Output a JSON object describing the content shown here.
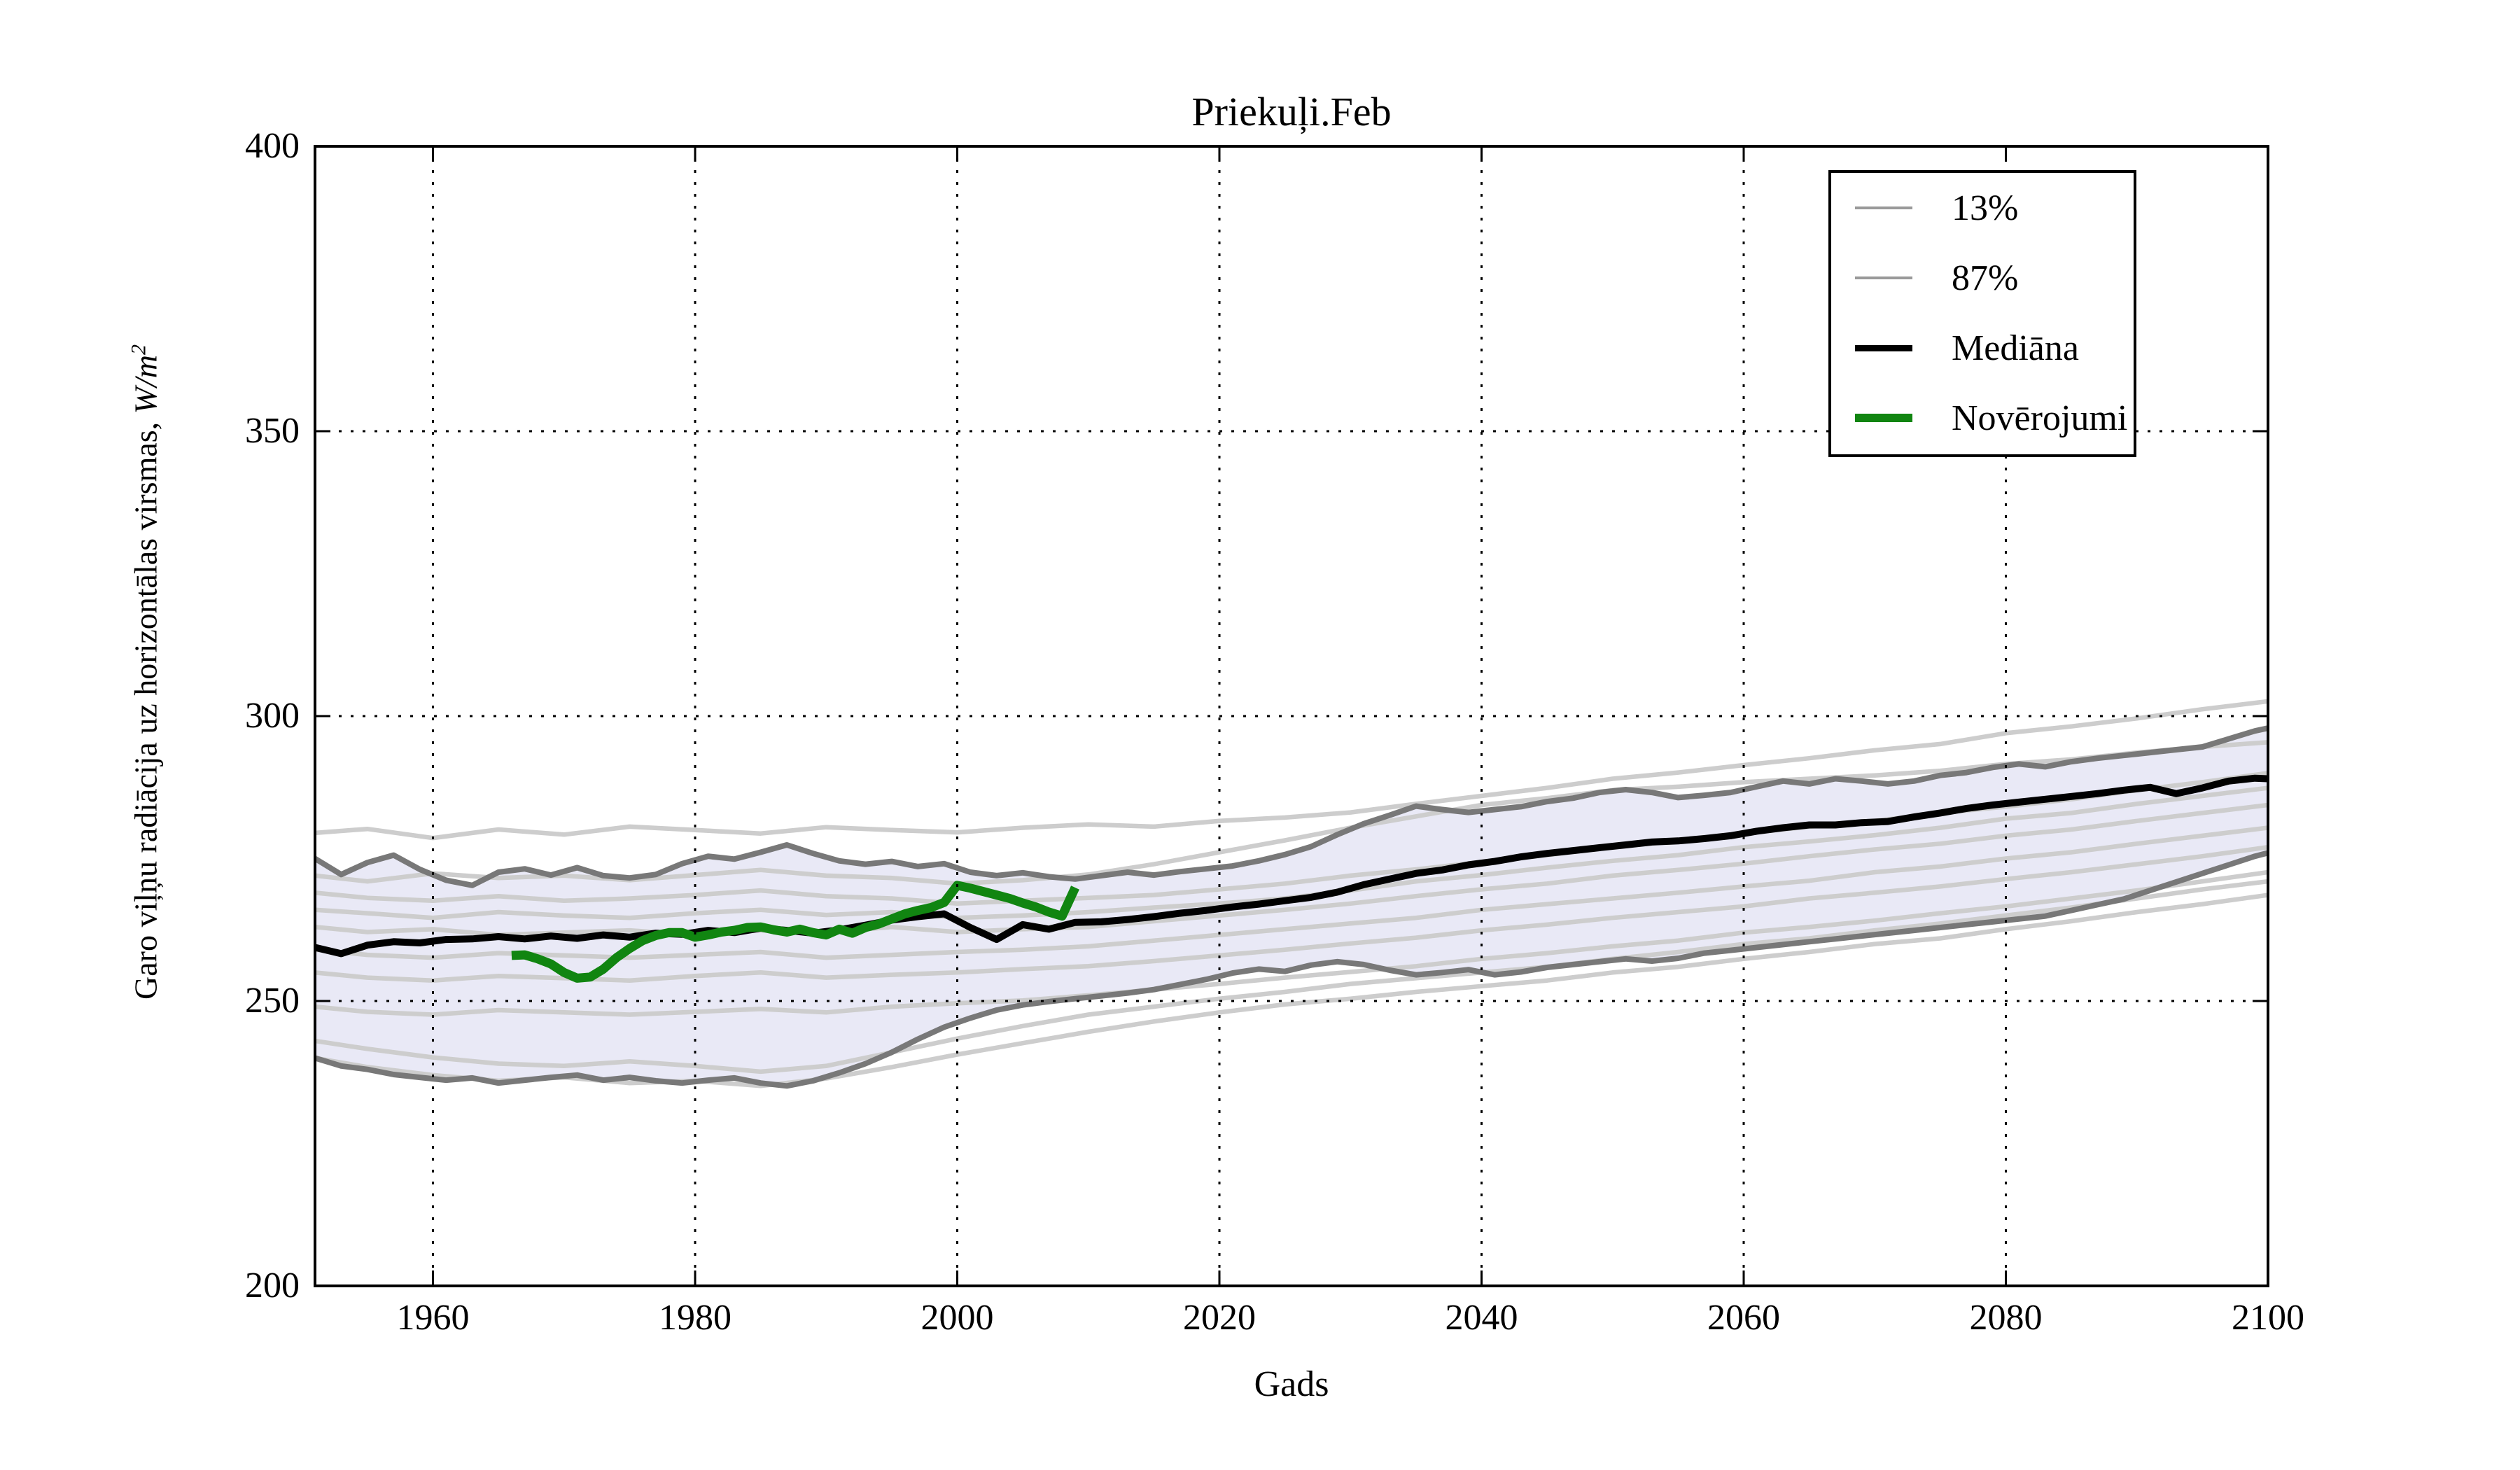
{
  "title": "Priekuļi.Feb",
  "xlabel": "Gads",
  "ylabel": {
    "text": "Garo viļņu radiācija uz horizontālas virsmas, ",
    "math": "W/m",
    "exp": "2"
  },
  "colors": {
    "background": "#ffffff",
    "frame": "#000000",
    "grid": "#000000",
    "band_fill": "#e9e9f6",
    "band_edge": "#787878",
    "ensemble": "#cdcdcd",
    "median": "#000000",
    "observations": "#118511",
    "legend_gray": "#999999"
  },
  "legend": {
    "items": [
      {
        "label": "13%",
        "color": "#999999",
        "lw": 4
      },
      {
        "label": "87%",
        "color": "#999999",
        "lw": 4
      },
      {
        "label": "Mediāna",
        "color": "#000000",
        "lw": 9
      },
      {
        "label": "Novērojumi",
        "color": "#118511",
        "lw": 12
      }
    ]
  },
  "chart_data": {
    "type": "line",
    "title": "Priekuļi.Feb",
    "xlabel": "Gads",
    "ylabel": "Garo viļņu radiācija uz horizontālas virsmas, W/m²",
    "xlim": [
      1951,
      2100
    ],
    "ylim": [
      200,
      400
    ],
    "xticks": [
      1960,
      1980,
      2000,
      2020,
      2040,
      2060,
      2080,
      2100
    ],
    "yticks": [
      200,
      250,
      300,
      350,
      400
    ],
    "grid": true,
    "grid_style": "dotted",
    "legend_position": "upper right",
    "band": {
      "lower": "p13",
      "upper": "p87",
      "fill": "#e9e9f6"
    },
    "years_main": [
      1951,
      1953,
      1955,
      1957,
      1959,
      1961,
      1963,
      1965,
      1967,
      1969,
      1971,
      1973,
      1975,
      1977,
      1979,
      1981,
      1983,
      1985,
      1987,
      1989,
      1991,
      1993,
      1995,
      1997,
      1999,
      2001,
      2003,
      2005,
      2007,
      2009,
      2011,
      2013,
      2015,
      2017,
      2019,
      2021,
      2023,
      2025,
      2027,
      2029,
      2031,
      2033,
      2035,
      2037,
      2039,
      2041,
      2043,
      2045,
      2047,
      2049,
      2051,
      2053,
      2055,
      2057,
      2059,
      2061,
      2063,
      2065,
      2067,
      2069,
      2071,
      2073,
      2075,
      2077,
      2079,
      2081,
      2083,
      2085,
      2087,
      2089,
      2091,
      2093,
      2095,
      2097,
      2099,
      2100
    ],
    "series": {
      "median": {
        "label": "Mediāna",
        "values": [
          259.4,
          258.3,
          259.8,
          260.4,
          260.2,
          260.8,
          260.9,
          261.3,
          260.9,
          261.4,
          261.0,
          261.6,
          261.2,
          261.9,
          261.7,
          262.4,
          262.0,
          262.8,
          262.4,
          261.9,
          262.5,
          263.3,
          264.2,
          264.8,
          265.3,
          262.9,
          260.8,
          263.4,
          262.6,
          263.8,
          263.9,
          264.3,
          264.8,
          265.4,
          265.9,
          266.5,
          267.0,
          267.6,
          268.2,
          269.1,
          270.4,
          271.4,
          272.4,
          273.0,
          273.9,
          274.5,
          275.3,
          275.9,
          276.4,
          276.9,
          277.4,
          277.9,
          278.1,
          278.5,
          279.0,
          279.8,
          280.4,
          280.9,
          280.9,
          281.3,
          281.5,
          282.3,
          283.0,
          283.8,
          284.4,
          284.9,
          285.4,
          285.9,
          286.4,
          287.0,
          287.5,
          286.4,
          287.4,
          288.6,
          289.1,
          289.0
        ]
      },
      "p87": {
        "label": "87%",
        "values": [
          275.0,
          272.2,
          274.3,
          275.6,
          273.1,
          271.2,
          270.3,
          272.6,
          273.2,
          272.1,
          273.4,
          272.0,
          271.6,
          272.2,
          274.1,
          275.4,
          274.9,
          276.1,
          277.4,
          275.9,
          274.6,
          274.0,
          274.5,
          273.6,
          274.1,
          272.6,
          272.0,
          272.5,
          271.8,
          271.4,
          272.0,
          272.6,
          272.1,
          272.7,
          273.2,
          273.7,
          274.6,
          275.7,
          277.1,
          279.2,
          281.1,
          282.6,
          284.2,
          283.6,
          283.1,
          283.6,
          284.1,
          285.0,
          285.6,
          286.6,
          287.1,
          286.6,
          285.7,
          286.1,
          286.6,
          287.6,
          288.6,
          288.1,
          289.0,
          288.6,
          288.1,
          288.6,
          289.6,
          290.1,
          291.0,
          291.6,
          291.1,
          292.0,
          292.6,
          293.1,
          293.6,
          294.1,
          294.6,
          296.0,
          297.4,
          297.9
        ]
      },
      "p13": {
        "label": "13%",
        "values": [
          240.0,
          238.6,
          238.0,
          237.1,
          236.6,
          236.1,
          236.5,
          235.6,
          236.1,
          236.6,
          237.0,
          236.1,
          236.6,
          236.0,
          235.6,
          236.1,
          236.5,
          235.6,
          235.1,
          236.0,
          237.4,
          239.0,
          241.0,
          243.3,
          245.4,
          247.0,
          248.4,
          249.3,
          249.9,
          250.4,
          250.9,
          251.4,
          252.0,
          252.9,
          253.8,
          254.9,
          255.6,
          255.2,
          256.3,
          256.9,
          256.4,
          255.4,
          254.6,
          255.0,
          255.5,
          254.6,
          255.1,
          255.9,
          256.4,
          256.9,
          257.4,
          257.0,
          257.5,
          258.4,
          258.9,
          259.4,
          259.9,
          260.4,
          260.9,
          261.4,
          261.9,
          262.4,
          262.9,
          263.4,
          263.9,
          264.4,
          264.9,
          265.9,
          266.9,
          267.9,
          269.4,
          270.9,
          272.4,
          273.9,
          275.4,
          276.0
        ]
      },
      "observations": {
        "label": "Novērojumi",
        "years": [
          1966,
          1967,
          1968,
          1969,
          1970,
          1971,
          1972,
          1973,
          1974,
          1975,
          1976,
          1977,
          1978,
          1979,
          1980,
          1981,
          1982,
          1983,
          1984,
          1985,
          1986,
          1987,
          1988,
          1989,
          1990,
          1991,
          1992,
          1993,
          1994,
          1995,
          1996,
          1997,
          1998,
          1999,
          2000,
          2001,
          2002,
          2003,
          2004,
          2005,
          2006,
          2007,
          2008,
          2009
        ],
        "values": [
          258.0,
          258.1,
          257.4,
          256.5,
          255.0,
          254.0,
          254.2,
          255.6,
          257.6,
          259.2,
          260.6,
          261.5,
          262.0,
          262.0,
          261.2,
          261.6,
          262.1,
          262.4,
          262.9,
          263.0,
          262.5,
          262.1,
          262.6,
          262.0,
          261.6,
          262.6,
          261.9,
          262.9,
          263.5,
          264.4,
          265.3,
          265.9,
          266.4,
          267.3,
          270.3,
          269.8,
          269.2,
          268.6,
          268.0,
          267.2,
          266.5,
          265.6,
          264.9,
          269.9
        ]
      },
      "ensemble": {
        "label": "ensemble-members",
        "years": [
          1951,
          1955,
          1960,
          1965,
          1970,
          1975,
          1980,
          1985,
          1990,
          1995,
          2000,
          2005,
          2010,
          2015,
          2020,
          2025,
          2030,
          2035,
          2040,
          2045,
          2050,
          2055,
          2060,
          2065,
          2070,
          2075,
          2080,
          2085,
          2090,
          2095,
          2100
        ],
        "members": [
          [
            279.5,
            280.2,
            278.6,
            280.1,
            279.2,
            280.6,
            280.0,
            279.4,
            280.5,
            280.0,
            279.6,
            280.4,
            281.0,
            280.6,
            281.6,
            282.2,
            283.1,
            284.6,
            286.0,
            287.4,
            289.0,
            290.1,
            291.4,
            292.6,
            294.0,
            295.1,
            297.0,
            298.2,
            299.6,
            301.2,
            302.6
          ],
          [
            272.0,
            271.0,
            272.4,
            271.6,
            272.0,
            271.2,
            272.1,
            273.0,
            272.0,
            271.6,
            270.6,
            271.2,
            272.2,
            274.0,
            276.1,
            278.2,
            280.4,
            282.4,
            284.4,
            285.6,
            287.0,
            287.6,
            288.4,
            289.0,
            289.6,
            290.4,
            291.6,
            292.4,
            293.6,
            294.6,
            295.4
          ],
          [
            269.0,
            268.1,
            267.6,
            268.4,
            267.6,
            268.0,
            268.6,
            269.4,
            268.4,
            268.0,
            267.1,
            267.6,
            268.1,
            268.6,
            269.6,
            270.6,
            272.0,
            273.1,
            274.4,
            275.6,
            277.0,
            278.1,
            279.4,
            280.6,
            281.6,
            283.0,
            284.1,
            285.4,
            287.0,
            288.4,
            290.0
          ],
          [
            266.0,
            265.4,
            264.6,
            265.6,
            265.0,
            264.6,
            265.4,
            266.0,
            265.1,
            265.6,
            264.6,
            265.0,
            265.6,
            266.4,
            267.1,
            268.0,
            269.4,
            271.0,
            272.1,
            273.4,
            274.6,
            275.6,
            277.0,
            278.0,
            279.1,
            280.4,
            282.0,
            283.0,
            284.6,
            286.0,
            287.4
          ],
          [
            263.0,
            262.1,
            262.6,
            261.6,
            262.0,
            262.4,
            261.6,
            262.4,
            262.0,
            263.0,
            262.1,
            262.6,
            263.0,
            264.0,
            265.0,
            266.0,
            267.1,
            268.4,
            269.6,
            270.6,
            272.0,
            273.0,
            274.1,
            275.4,
            276.6,
            277.6,
            279.0,
            280.1,
            281.6,
            283.0,
            284.4
          ],
          [
            259.0,
            258.1,
            257.6,
            258.4,
            258.0,
            257.6,
            258.1,
            258.6,
            257.6,
            258.1,
            258.6,
            259.0,
            259.6,
            260.6,
            261.6,
            262.6,
            263.6,
            264.6,
            266.0,
            267.0,
            268.0,
            269.0,
            270.1,
            271.1,
            272.6,
            273.6,
            275.0,
            276.1,
            277.6,
            279.0,
            280.4
          ],
          [
            255.0,
            254.1,
            253.6,
            254.4,
            254.0,
            253.6,
            254.4,
            255.0,
            254.1,
            254.6,
            255.0,
            255.6,
            256.1,
            257.0,
            258.0,
            259.0,
            260.1,
            261.1,
            262.4,
            263.4,
            264.6,
            265.6,
            266.6,
            268.0,
            269.0,
            270.1,
            271.4,
            272.6,
            274.0,
            275.4,
            277.0
          ],
          [
            249.0,
            248.1,
            247.6,
            248.4,
            248.0,
            247.6,
            248.1,
            248.6,
            248.0,
            249.0,
            249.6,
            250.1,
            251.0,
            252.0,
            253.0,
            254.1,
            255.1,
            256.1,
            257.4,
            258.4,
            259.6,
            260.6,
            262.0,
            263.0,
            264.1,
            265.4,
            266.6,
            268.0,
            269.4,
            271.0,
            272.6
          ],
          [
            243.0,
            241.6,
            240.1,
            239.0,
            238.6,
            239.4,
            238.6,
            237.6,
            238.6,
            241.0,
            243.4,
            245.6,
            247.6,
            249.0,
            250.4,
            251.6,
            253.0,
            254.0,
            255.0,
            256.0,
            257.4,
            258.6,
            260.0,
            261.0,
            262.4,
            263.6,
            265.0,
            266.4,
            268.0,
            269.6,
            271.0
          ],
          [
            240.0,
            238.4,
            237.0,
            236.0,
            236.6,
            235.6,
            236.0,
            235.1,
            236.4,
            238.4,
            240.6,
            242.6,
            244.6,
            246.4,
            248.0,
            249.4,
            250.4,
            251.6,
            252.6,
            253.6,
            255.0,
            256.0,
            257.4,
            258.6,
            260.0,
            261.0,
            262.6,
            264.0,
            265.6,
            267.0,
            268.6
          ]
        ]
      }
    }
  }
}
